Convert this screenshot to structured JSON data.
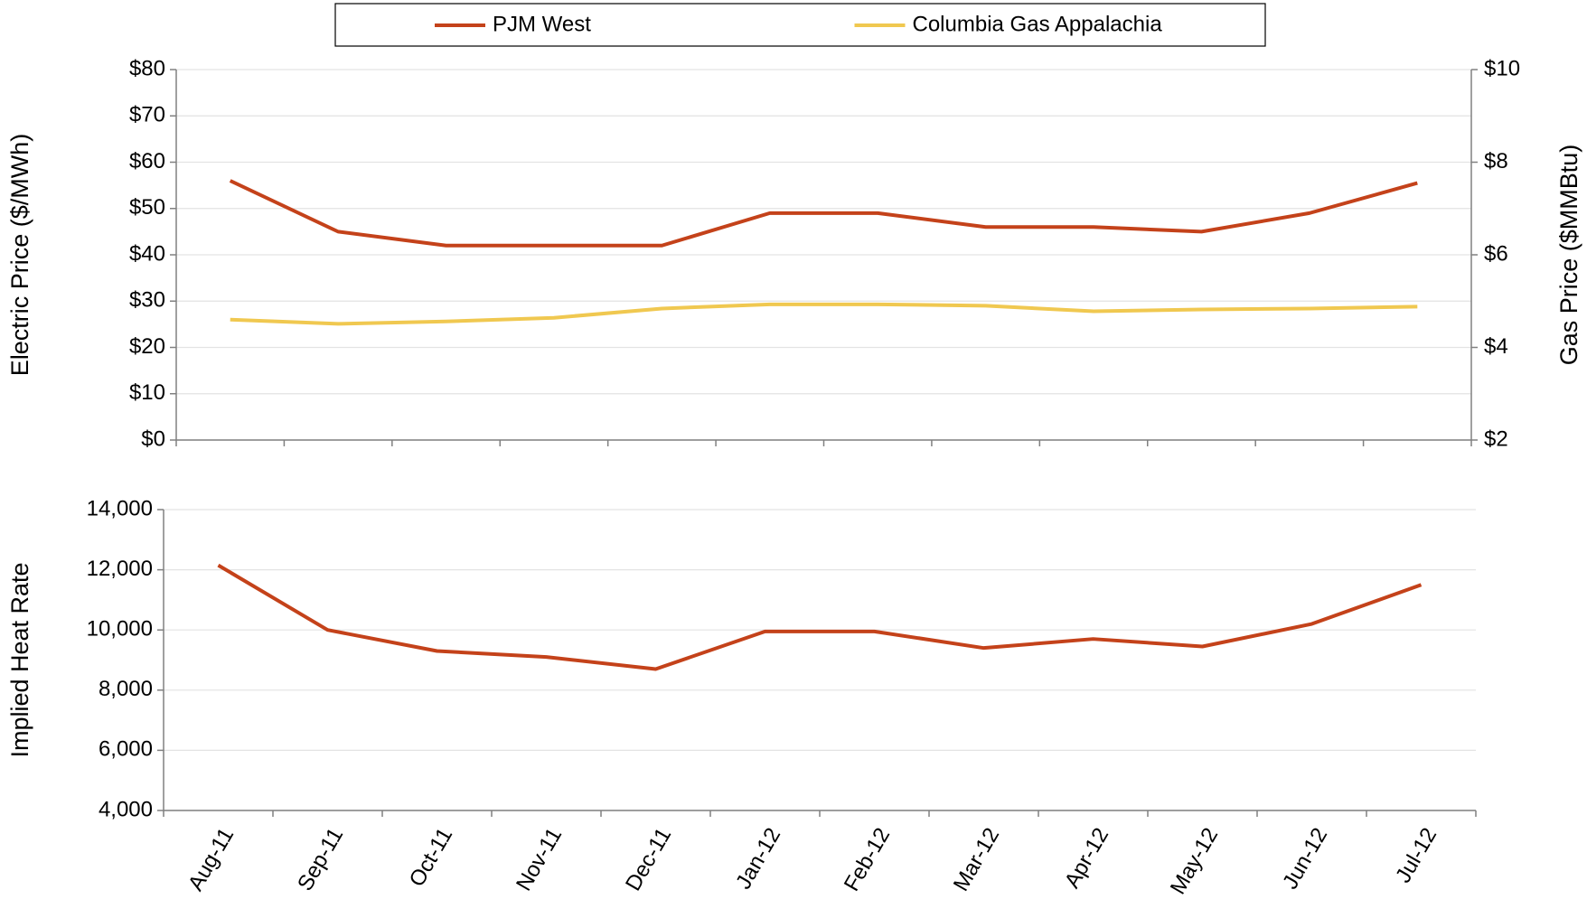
{
  "chart_data": [
    {
      "type": "line",
      "y_label": "Electric Price ($/MWh)",
      "y2_label": "Gas Price ($MMBtu)",
      "ylim": [
        0,
        80
      ],
      "yticks": [
        {
          "value": 0,
          "label": "$0"
        },
        {
          "value": 10,
          "label": "$10"
        },
        {
          "value": 20,
          "label": "$20"
        },
        {
          "value": 30,
          "label": "$30"
        },
        {
          "value": 40,
          "label": "$40"
        },
        {
          "value": 50,
          "label": "$50"
        },
        {
          "value": 60,
          "label": "$60"
        },
        {
          "value": 70,
          "label": "$70"
        },
        {
          "value": 80,
          "label": "$80"
        }
      ],
      "y2lim": [
        2,
        10
      ],
      "y2ticks": [
        {
          "value": 2,
          "label": "$2"
        },
        {
          "value": 4,
          "label": "$4"
        },
        {
          "value": 6,
          "label": "$6"
        },
        {
          "value": 8,
          "label": "$8"
        },
        {
          "value": 10,
          "label": "$10"
        }
      ],
      "grid": true,
      "legend": "top",
      "series": [
        {
          "name": "PJM West",
          "color": "#c4421a",
          "values": [
            56,
            45,
            42,
            42,
            42,
            49,
            49,
            46,
            46,
            45,
            49,
            55.5
          ]
        },
        {
          "name": "Columbia Gas Appalachia",
          "color": "#f0c850",
          "axis": "y2",
          "values": [
            4.6,
            4.51,
            4.56,
            4.64,
            4.84,
            4.93,
            4.93,
            4.9,
            4.78,
            4.82,
            4.84,
            4.88
          ]
        }
      ]
    },
    {
      "type": "line",
      "y_label": "Implied Heat Rate",
      "categories": [
        "Aug-11",
        "Sep-11",
        "Oct-11",
        "Nov-11",
        "Dec-11",
        "Jan-12",
        "Feb-12",
        "Mar-12",
        "Apr-12",
        "May-12",
        "Jun-12",
        "Jul-12"
      ],
      "ylim": [
        4000,
        14000
      ],
      "yticks": [
        {
          "value": 4000,
          "label": "4,000"
        },
        {
          "value": 6000,
          "label": "6,000"
        },
        {
          "value": 8000,
          "label": "8,000"
        },
        {
          "value": 10000,
          "label": "10,000"
        },
        {
          "value": 12000,
          "label": "12,000"
        },
        {
          "value": 14000,
          "label": "14,000"
        }
      ],
      "grid": true,
      "series": [
        {
          "color": "#c4421a",
          "values": [
            12150,
            10000,
            9300,
            9100,
            8700,
            9950,
            9950,
            9400,
            9700,
            9450,
            10200,
            11500
          ]
        }
      ]
    }
  ]
}
